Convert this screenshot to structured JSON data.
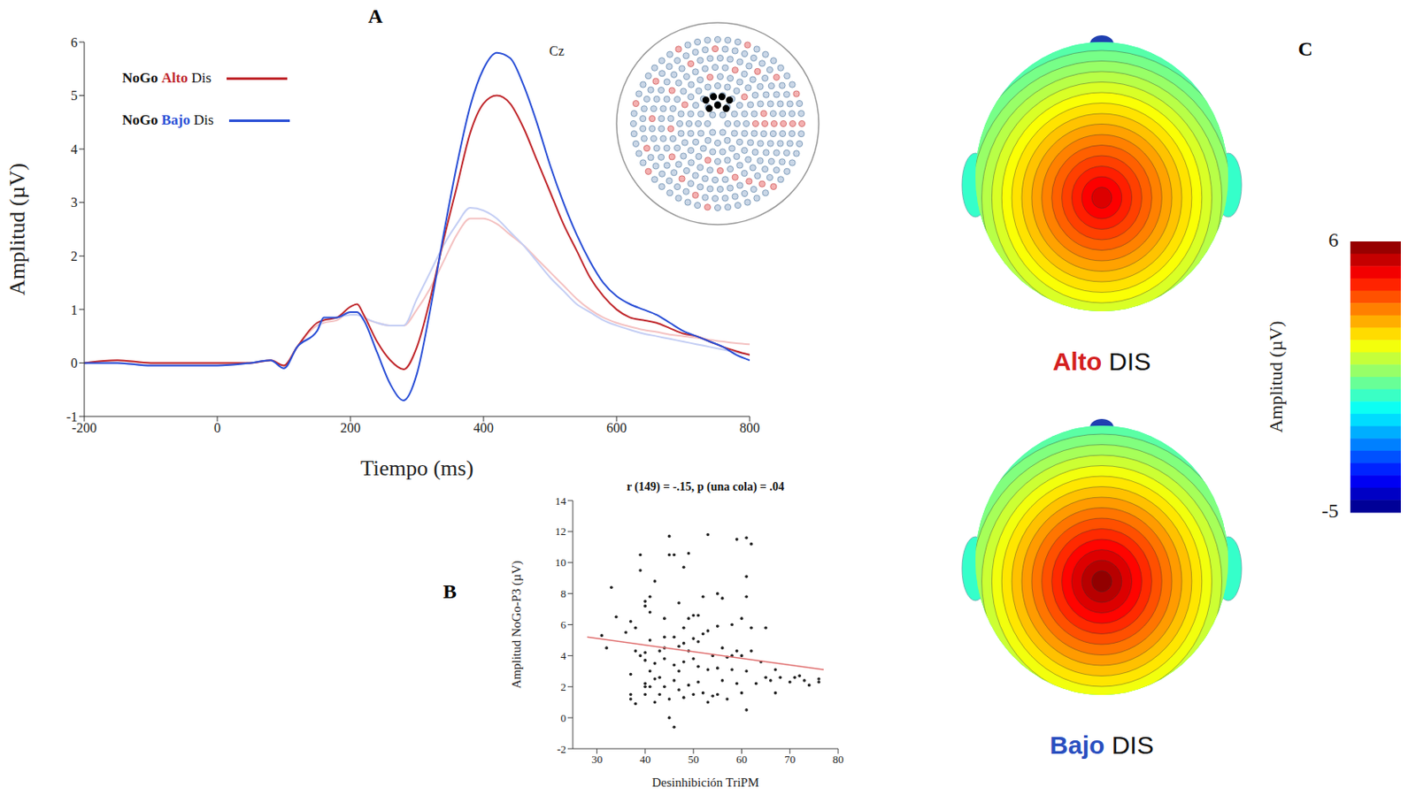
{
  "chart_data": [
    {
      "panel": "A",
      "type": "line",
      "x_label": "Tiempo (ms)",
      "y_label": "Amplitud (µV)",
      "annotation": "Cz",
      "legend": "upper left",
      "x": [
        -200,
        -150,
        -100,
        -50,
        0,
        50,
        80,
        100,
        120,
        150,
        160,
        180,
        200,
        210,
        220,
        240,
        260,
        280,
        300,
        320,
        340,
        360,
        380,
        400,
        420,
        440,
        460,
        480,
        500,
        520,
        540,
        560,
        580,
        600,
        620,
        640,
        660,
        680,
        700,
        720,
        740,
        760,
        780,
        800
      ],
      "series": [
        {
          "name": "NoGo Alto Dis",
          "color": "#c0282d",
          "values": [
            0,
            0.05,
            0,
            0,
            0,
            0,
            0.05,
            -0.05,
            0.3,
            0.75,
            0.8,
            0.85,
            1.05,
            1.1,
            0.9,
            0.4,
            0.05,
            -0.12,
            0.3,
            1.2,
            2.3,
            3.3,
            4.3,
            4.85,
            5.0,
            4.85,
            4.4,
            3.8,
            3.2,
            2.6,
            2.1,
            1.6,
            1.25,
            1.0,
            0.85,
            0.8,
            0.75,
            0.65,
            0.55,
            0.5,
            0.4,
            0.3,
            0.22,
            0.15
          ]
        },
        {
          "name": "NoGo Bajo Dis",
          "color": "#2a4fd6",
          "values": [
            0,
            0,
            -0.05,
            -0.05,
            -0.05,
            0,
            0.05,
            -0.1,
            0.3,
            0.6,
            0.85,
            0.85,
            0.95,
            0.95,
            0.8,
            0.2,
            -0.4,
            -0.7,
            -0.2,
            1.0,
            2.4,
            3.7,
            4.8,
            5.5,
            5.8,
            5.7,
            5.2,
            4.5,
            3.7,
            3.0,
            2.4,
            1.9,
            1.5,
            1.25,
            1.1,
            1.0,
            0.9,
            0.75,
            0.6,
            0.5,
            0.4,
            0.3,
            0.15,
            0.05
          ]
        },
        {
          "color": "#f4c2c2",
          "values": [
            0,
            0.05,
            0,
            0,
            0,
            0,
            0.05,
            -0.05,
            0.3,
            0.7,
            0.75,
            0.8,
            0.95,
            0.95,
            0.85,
            0.75,
            0.7,
            0.7,
            1.0,
            1.4,
            1.9,
            2.4,
            2.7,
            2.7,
            2.6,
            2.4,
            2.2,
            1.95,
            1.7,
            1.45,
            1.2,
            1.0,
            0.85,
            0.75,
            0.68,
            0.62,
            0.58,
            0.53,
            0.5,
            0.47,
            0.43,
            0.4,
            0.37,
            0.35
          ]
        },
        {
          "color": "#c4cef4",
          "values": [
            0,
            0,
            -0.05,
            -0.05,
            -0.05,
            0,
            0.05,
            -0.1,
            0.3,
            0.6,
            0.8,
            0.85,
            0.9,
            0.9,
            0.85,
            0.75,
            0.7,
            0.7,
            1.2,
            1.7,
            2.2,
            2.6,
            2.9,
            2.85,
            2.7,
            2.45,
            2.2,
            1.9,
            1.6,
            1.35,
            1.1,
            0.95,
            0.8,
            0.7,
            0.62,
            0.55,
            0.5,
            0.45,
            0.4,
            0.35,
            0.3,
            0.25,
            0.2,
            0.15
          ]
        }
      ],
      "xlim": [
        -200,
        800
      ],
      "xticks": [
        -200,
        0,
        200,
        400,
        600,
        800
      ],
      "ylim": [
        -1,
        6
      ],
      "yticks": [
        -1,
        0,
        1,
        2,
        3,
        4,
        5,
        6
      ]
    },
    {
      "panel": "B",
      "type": "scatter",
      "title": "r (149) = -.15, p (una cola) = .04",
      "x_label": "Desinhibición TriPM",
      "y_label": "Amplitud NoGo-P3 (µV)",
      "color": "#222222",
      "x": [
        31,
        32,
        33,
        34,
        36,
        37,
        37,
        37,
        37,
        38,
        38,
        38,
        39,
        39,
        39,
        40,
        40,
        40,
        40,
        40,
        40,
        40,
        41,
        41,
        41,
        41,
        41,
        42,
        42,
        42,
        42,
        43,
        43,
        43,
        44,
        44,
        44,
        44,
        44,
        45,
        45,
        45,
        45,
        46,
        46,
        46,
        46,
        46,
        47,
        47,
        47,
        47,
        48,
        48,
        48,
        48,
        48,
        49,
        49,
        49,
        49,
        50,
        50,
        50,
        50,
        51,
        51,
        51,
        51,
        52,
        52,
        52,
        53,
        53,
        53,
        53,
        54,
        54,
        55,
        55,
        55,
        55,
        56,
        56,
        56,
        57,
        57,
        58,
        58,
        58,
        59,
        59,
        59,
        60,
        60,
        60,
        61,
        61,
        61,
        61,
        61,
        62,
        62,
        62,
        63,
        64,
        65,
        65,
        66,
        67,
        67,
        68,
        70,
        71,
        72,
        73,
        74,
        76,
        76
      ],
      "values": [
        5.3,
        4.5,
        8.4,
        6.5,
        5.5,
        6.2,
        2.8,
        1.5,
        1.2,
        0.9,
        4.3,
        5.8,
        9.5,
        10.5,
        4.0,
        4.2,
        3.7,
        2.0,
        1.5,
        2.2,
        7.5,
        7.2,
        7.8,
        6.8,
        5.0,
        3.0,
        2.0,
        3.5,
        1.0,
        2.5,
        8.8,
        4.3,
        1.5,
        2.6,
        6.4,
        5.2,
        4.5,
        3.8,
        2.0,
        11.7,
        10.5,
        1.2,
        0.0,
        10.5,
        -0.6,
        5.2,
        2.4,
        3.4,
        7.4,
        4.6,
        3.0,
        1.8,
        9.7,
        5.8,
        4.8,
        3.6,
        1.3,
        10.6,
        6.4,
        4.3,
        2.1,
        6.6,
        5.1,
        3.8,
        1.5,
        6.6,
        4.9,
        3.3,
        2.3,
        7.8,
        5.4,
        1.6,
        11.8,
        5.6,
        3.1,
        1.0,
        4.0,
        1.4,
        8.0,
        5.9,
        3.2,
        1.5,
        7.7,
        4.5,
        2.4,
        3.9,
        1.2,
        6.0,
        4.0,
        3.1,
        11.5,
        4.3,
        2.2,
        6.4,
        4.0,
        1.6,
        11.6,
        9.1,
        7.8,
        3.0,
        0.5,
        11.2,
        5.8,
        4.3,
        2.2,
        3.6,
        5.8,
        2.6,
        2.4,
        3.1,
        1.6,
        2.6,
        2.3,
        2.6,
        2.7,
        2.4,
        2.1,
        2.3,
        2.5
      ],
      "fit": {
        "x": [
          28,
          77
        ],
        "values": [
          5.2,
          3.1
        ],
        "color": "#e07070"
      },
      "xlim": [
        25,
        80
      ],
      "xticks": [
        30,
        40,
        50,
        60,
        70,
        80
      ],
      "ylim": [
        -2,
        14
      ],
      "yticks": [
        -2,
        0,
        2,
        4,
        6,
        8,
        10,
        12,
        14
      ]
    },
    {
      "panel": "C",
      "type": "topomap",
      "maps": [
        {
          "label": "Alto DIS",
          "color": "#d42020",
          "peak": 5.0,
          "edge": -0.3
        },
        {
          "label": "Bajo DIS",
          "color": "#2a4fbf",
          "peak": 5.8,
          "edge": -0.3
        }
      ],
      "colorbar": {
        "label": "Amplitud (µV)",
        "range": [
          -5,
          6
        ],
        "ticks": [
          6,
          -5
        ]
      }
    }
  ]
}
